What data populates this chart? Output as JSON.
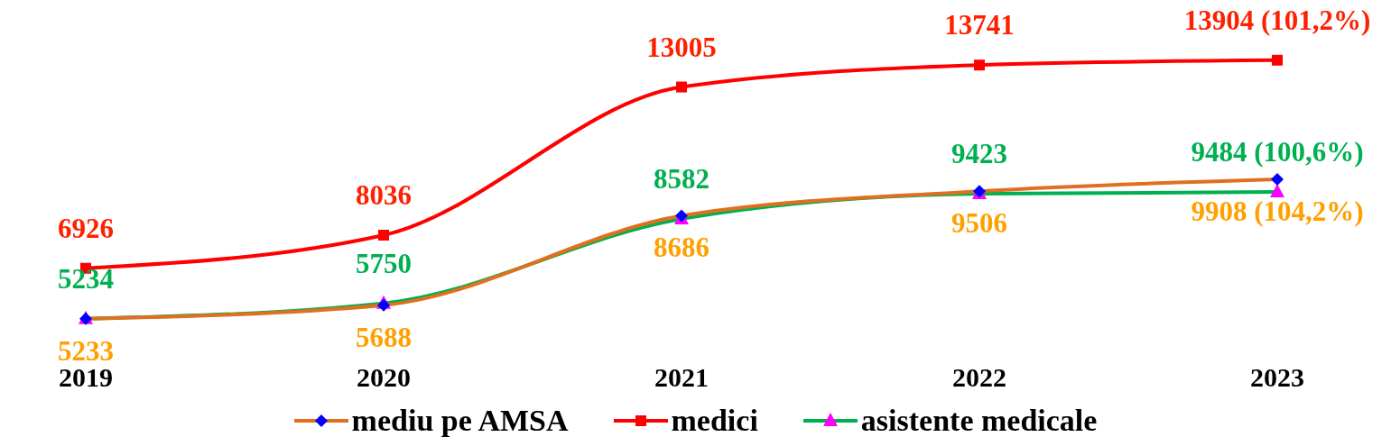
{
  "chart_data": {
    "type": "line",
    "categories": [
      "2019",
      "2020",
      "2021",
      "2022",
      "2023"
    ],
    "data_labels": true,
    "legend": "bottom",
    "series": [
      {
        "name": "mediu pe AMSA",
        "color": "#e07020",
        "marker": "diamond",
        "values": [
          5233,
          5688,
          8686,
          9506,
          9908
        ],
        "value_labels": [
          "5233",
          "5688",
          "8686",
          "9506",
          "9908 (104,2%)"
        ]
      },
      {
        "name": "medici",
        "color": "#ff0000",
        "marker": "square",
        "values": [
          6926,
          8036,
          13005,
          13741,
          13904
        ],
        "value_labels": [
          "6926",
          "8036",
          "13005",
          "13741",
          "13904 (101,2%)"
        ]
      },
      {
        "name": "asistente medicale",
        "color": "#00b050",
        "marker": "triangle",
        "values": [
          5234,
          5750,
          8582,
          9423,
          9484
        ],
        "value_labels": [
          "5234",
          "5750",
          "8582",
          "9423",
          "9484 (100,6%)"
        ]
      }
    ]
  }
}
